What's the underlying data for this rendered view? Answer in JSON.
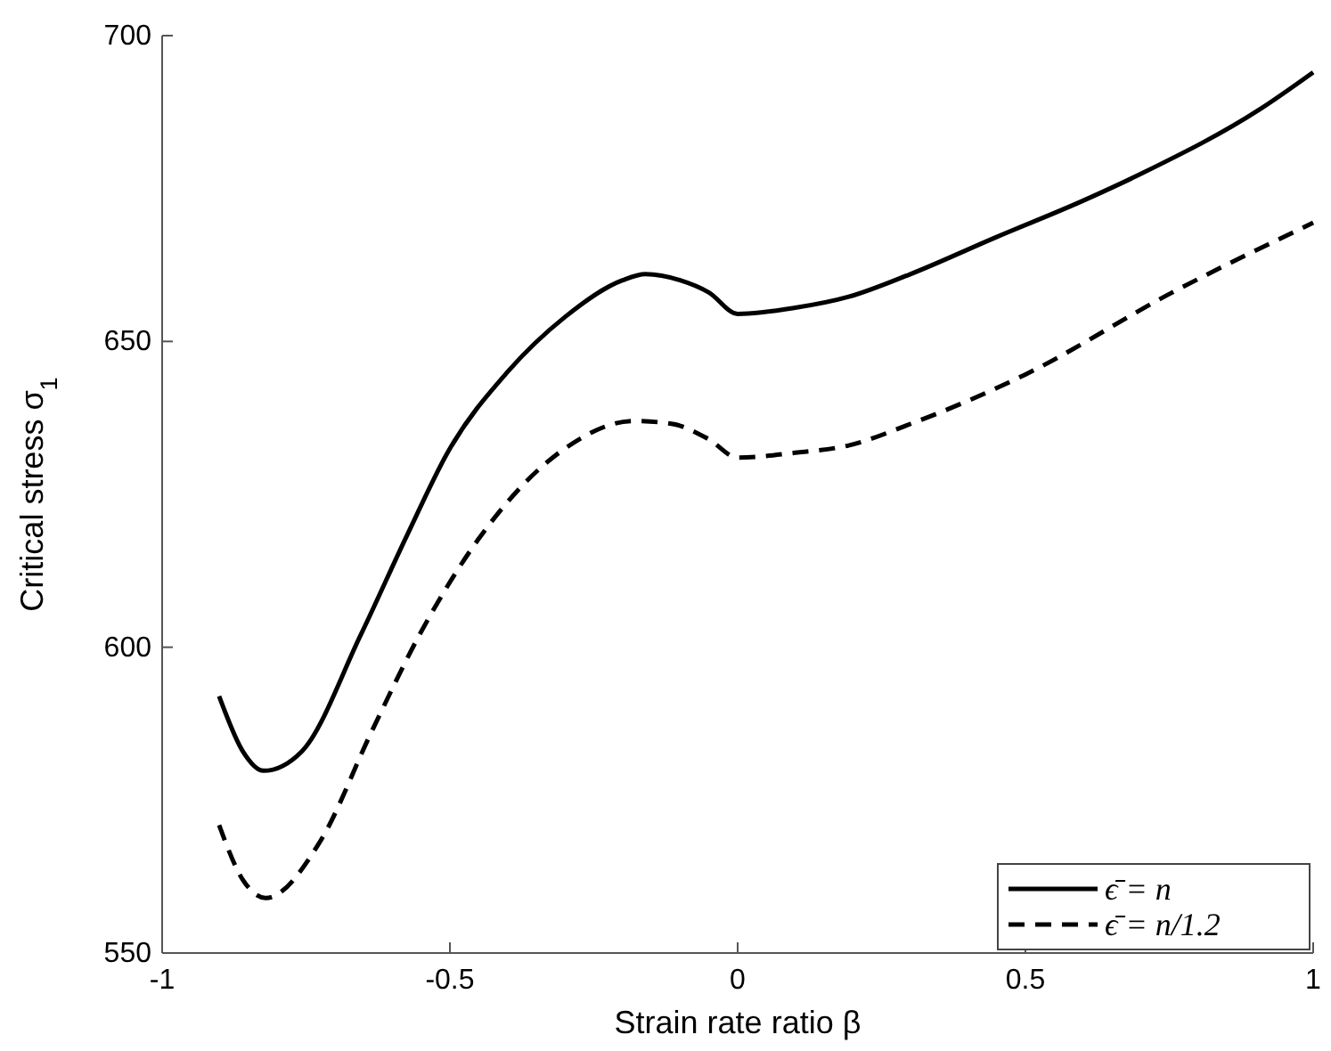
{
  "chart_data": {
    "type": "line",
    "xlabel": "Strain rate ratio β",
    "ylabel": "Critical stress σ$_{1}$",
    "xlim": [
      -1,
      1
    ],
    "ylim": [
      550,
      700
    ],
    "xticks": [
      -1,
      -0.5,
      0,
      0.5,
      1
    ],
    "yticks": [
      550,
      600,
      650,
      700
    ],
    "grid": false,
    "legend": "bottom right",
    "series": [
      {
        "name": "ϵ̄ = n",
        "color": "#000000",
        "line_style": "solid",
        "x": [
          -0.901,
          -0.86,
          -0.824,
          -0.757,
          -0.655,
          -0.574,
          -0.503,
          -0.4,
          -0.3,
          -0.2,
          -0.16,
          -0.1,
          -0.05,
          0,
          0.1,
          0.193,
          0.3,
          0.448,
          0.6,
          0.705,
          0.908,
          1.0
        ],
        "values": [
          592,
          583,
          579.8,
          583,
          602,
          618.4,
          632,
          645,
          654,
          660,
          661,
          660,
          658,
          654.5,
          655.5,
          657.3,
          661,
          667,
          673,
          677.6,
          688,
          694
        ]
      },
      {
        "name": "ϵ̄ = n/1.2",
        "color": "#000000",
        "line_style": "dashed",
        "x": [
          -0.901,
          -0.86,
          -0.82,
          -0.727,
          -0.635,
          -0.553,
          -0.451,
          -0.3,
          -0.18,
          -0.113,
          -0.05,
          0,
          0.1,
          0.193,
          0.3,
          0.5,
          0.755,
          1.0
        ],
        "values": [
          570.9,
          562,
          559,
          568,
          586.4,
          602,
          617.6,
          632.5,
          637,
          636.5,
          634,
          631,
          631.8,
          633,
          636.5,
          644.6,
          658,
          669.4
        ]
      }
    ]
  }
}
